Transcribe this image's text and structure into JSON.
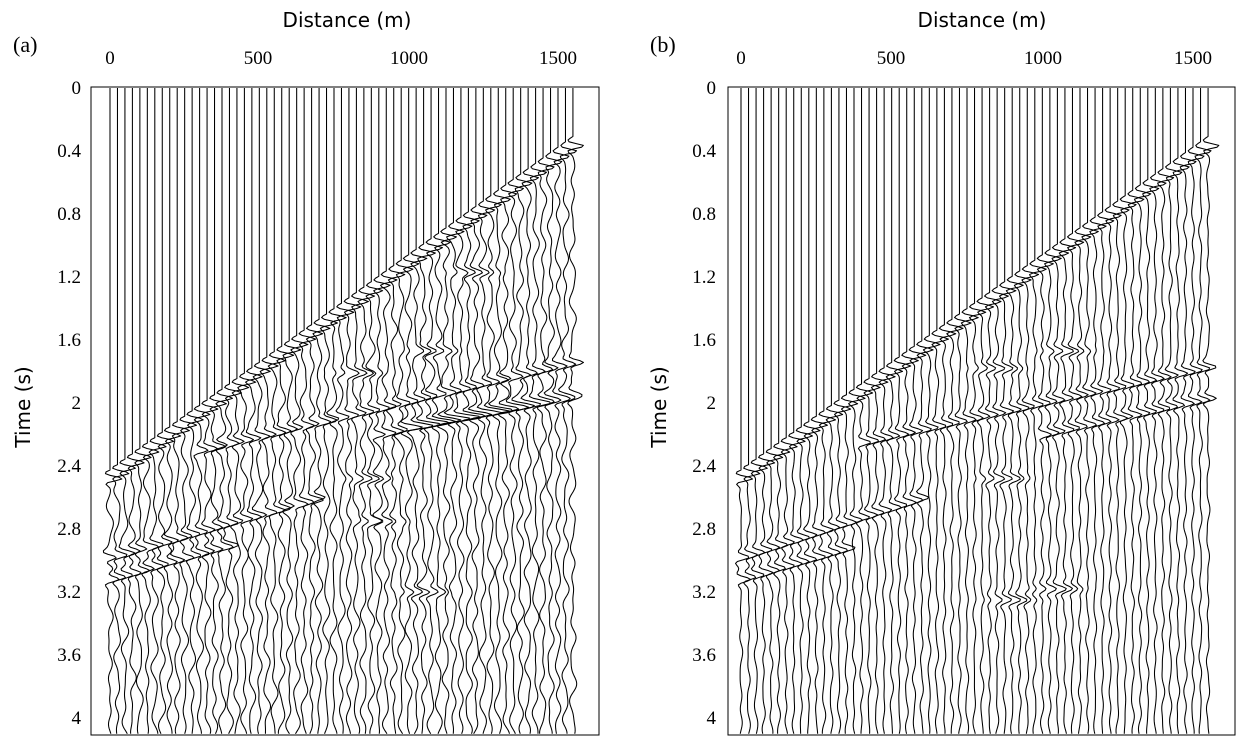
{
  "chart_data": [
    {
      "type": "seismic-wiggle",
      "panel_label": "(a)",
      "xlabel": "Distance (m)",
      "ylabel": "Time (s)",
      "x_axis_position": "top",
      "y_axis_inverted": true,
      "xlim": [
        0,
        1600
      ],
      "ylim": [
        0,
        4.1
      ],
      "x_ticks": [
        0,
        500,
        1000,
        1500
      ],
      "x_tick_labels": [
        "0",
        "500",
        "1000",
        "1500"
      ],
      "y_ticks": [
        0,
        0.4,
        0.8,
        1.2,
        1.6,
        2,
        2.4,
        2.8,
        3.2,
        3.6,
        4
      ],
      "y_tick_labels": [
        "0",
        "0.4",
        "0.8",
        "1.2",
        "1.6",
        "2",
        "2.4",
        "2.8",
        "3.2",
        "3.6",
        "4"
      ],
      "trace_count": 65,
      "trace_spacing_m": 25,
      "first_arrival": {
        "x": [
          0,
          1600
        ],
        "t": [
          2.48,
          0.3
        ]
      },
      "events": [
        {
          "x": [
            0,
            700
          ],
          "t": [
            2.98,
            2.6
          ]
        },
        {
          "x": [
            0,
            400
          ],
          "t": [
            3.12,
            2.9
          ]
        },
        {
          "x": [
            300,
            1600
          ],
          "t": [
            2.3,
            1.72
          ]
        },
        {
          "x": [
            900,
            1600
          ],
          "t": [
            2.2,
            1.92
          ]
        },
        {
          "x": [
            1000,
            1600
          ],
          "t": [
            2.15,
            1.95
          ]
        }
      ],
      "blobs": [
        {
          "x": 830,
          "t": 1.81
        },
        {
          "x": 870,
          "t": 2.48
        },
        {
          "x": 900,
          "t": 2.75
        },
        {
          "x": 1220,
          "t": 1.17
        },
        {
          "x": 1080,
          "t": 1.67
        },
        {
          "x": 1050,
          "t": 3.2
        }
      ],
      "noise_level": "high"
    },
    {
      "type": "seismic-wiggle",
      "panel_label": "(b)",
      "xlabel": "Distance (m)",
      "ylabel": "Time (s)",
      "x_axis_position": "top",
      "y_axis_inverted": true,
      "xlim": [
        0,
        1600
      ],
      "ylim": [
        0,
        4.1
      ],
      "x_ticks": [
        0,
        500,
        1000,
        1500
      ],
      "x_tick_labels": [
        "0",
        "500",
        "1000",
        "1500"
      ],
      "y_ticks": [
        0,
        0.4,
        0.8,
        1.2,
        1.6,
        2,
        2.4,
        2.8,
        3.2,
        3.6,
        4
      ],
      "y_tick_labels": [
        "0",
        "0.4",
        "0.8",
        "1.2",
        "1.6",
        "2",
        "2.4",
        "2.8",
        "3.2",
        "3.6",
        "4"
      ],
      "trace_count": 65,
      "trace_spacing_m": 25,
      "first_arrival": {
        "x": [
          0,
          1600
        ],
        "t": [
          2.48,
          0.3
        ]
      },
      "events": [
        {
          "x": [
            0,
            600
          ],
          "t": [
            2.98,
            2.6
          ]
        },
        {
          "x": [
            0,
            350
          ],
          "t": [
            3.12,
            2.92
          ]
        },
        {
          "x": [
            400,
            1600
          ],
          "t": [
            2.25,
            1.75
          ]
        },
        {
          "x": [
            1000,
            1600
          ],
          "t": [
            2.2,
            1.95
          ]
        }
      ],
      "blobs": [
        {
          "x": 850,
          "t": 1.78
        },
        {
          "x": 870,
          "t": 2.48
        },
        {
          "x": 1080,
          "t": 1.67
        },
        {
          "x": 1050,
          "t": 3.18
        },
        {
          "x": 900,
          "t": 3.25
        }
      ],
      "noise_level": "low"
    }
  ]
}
